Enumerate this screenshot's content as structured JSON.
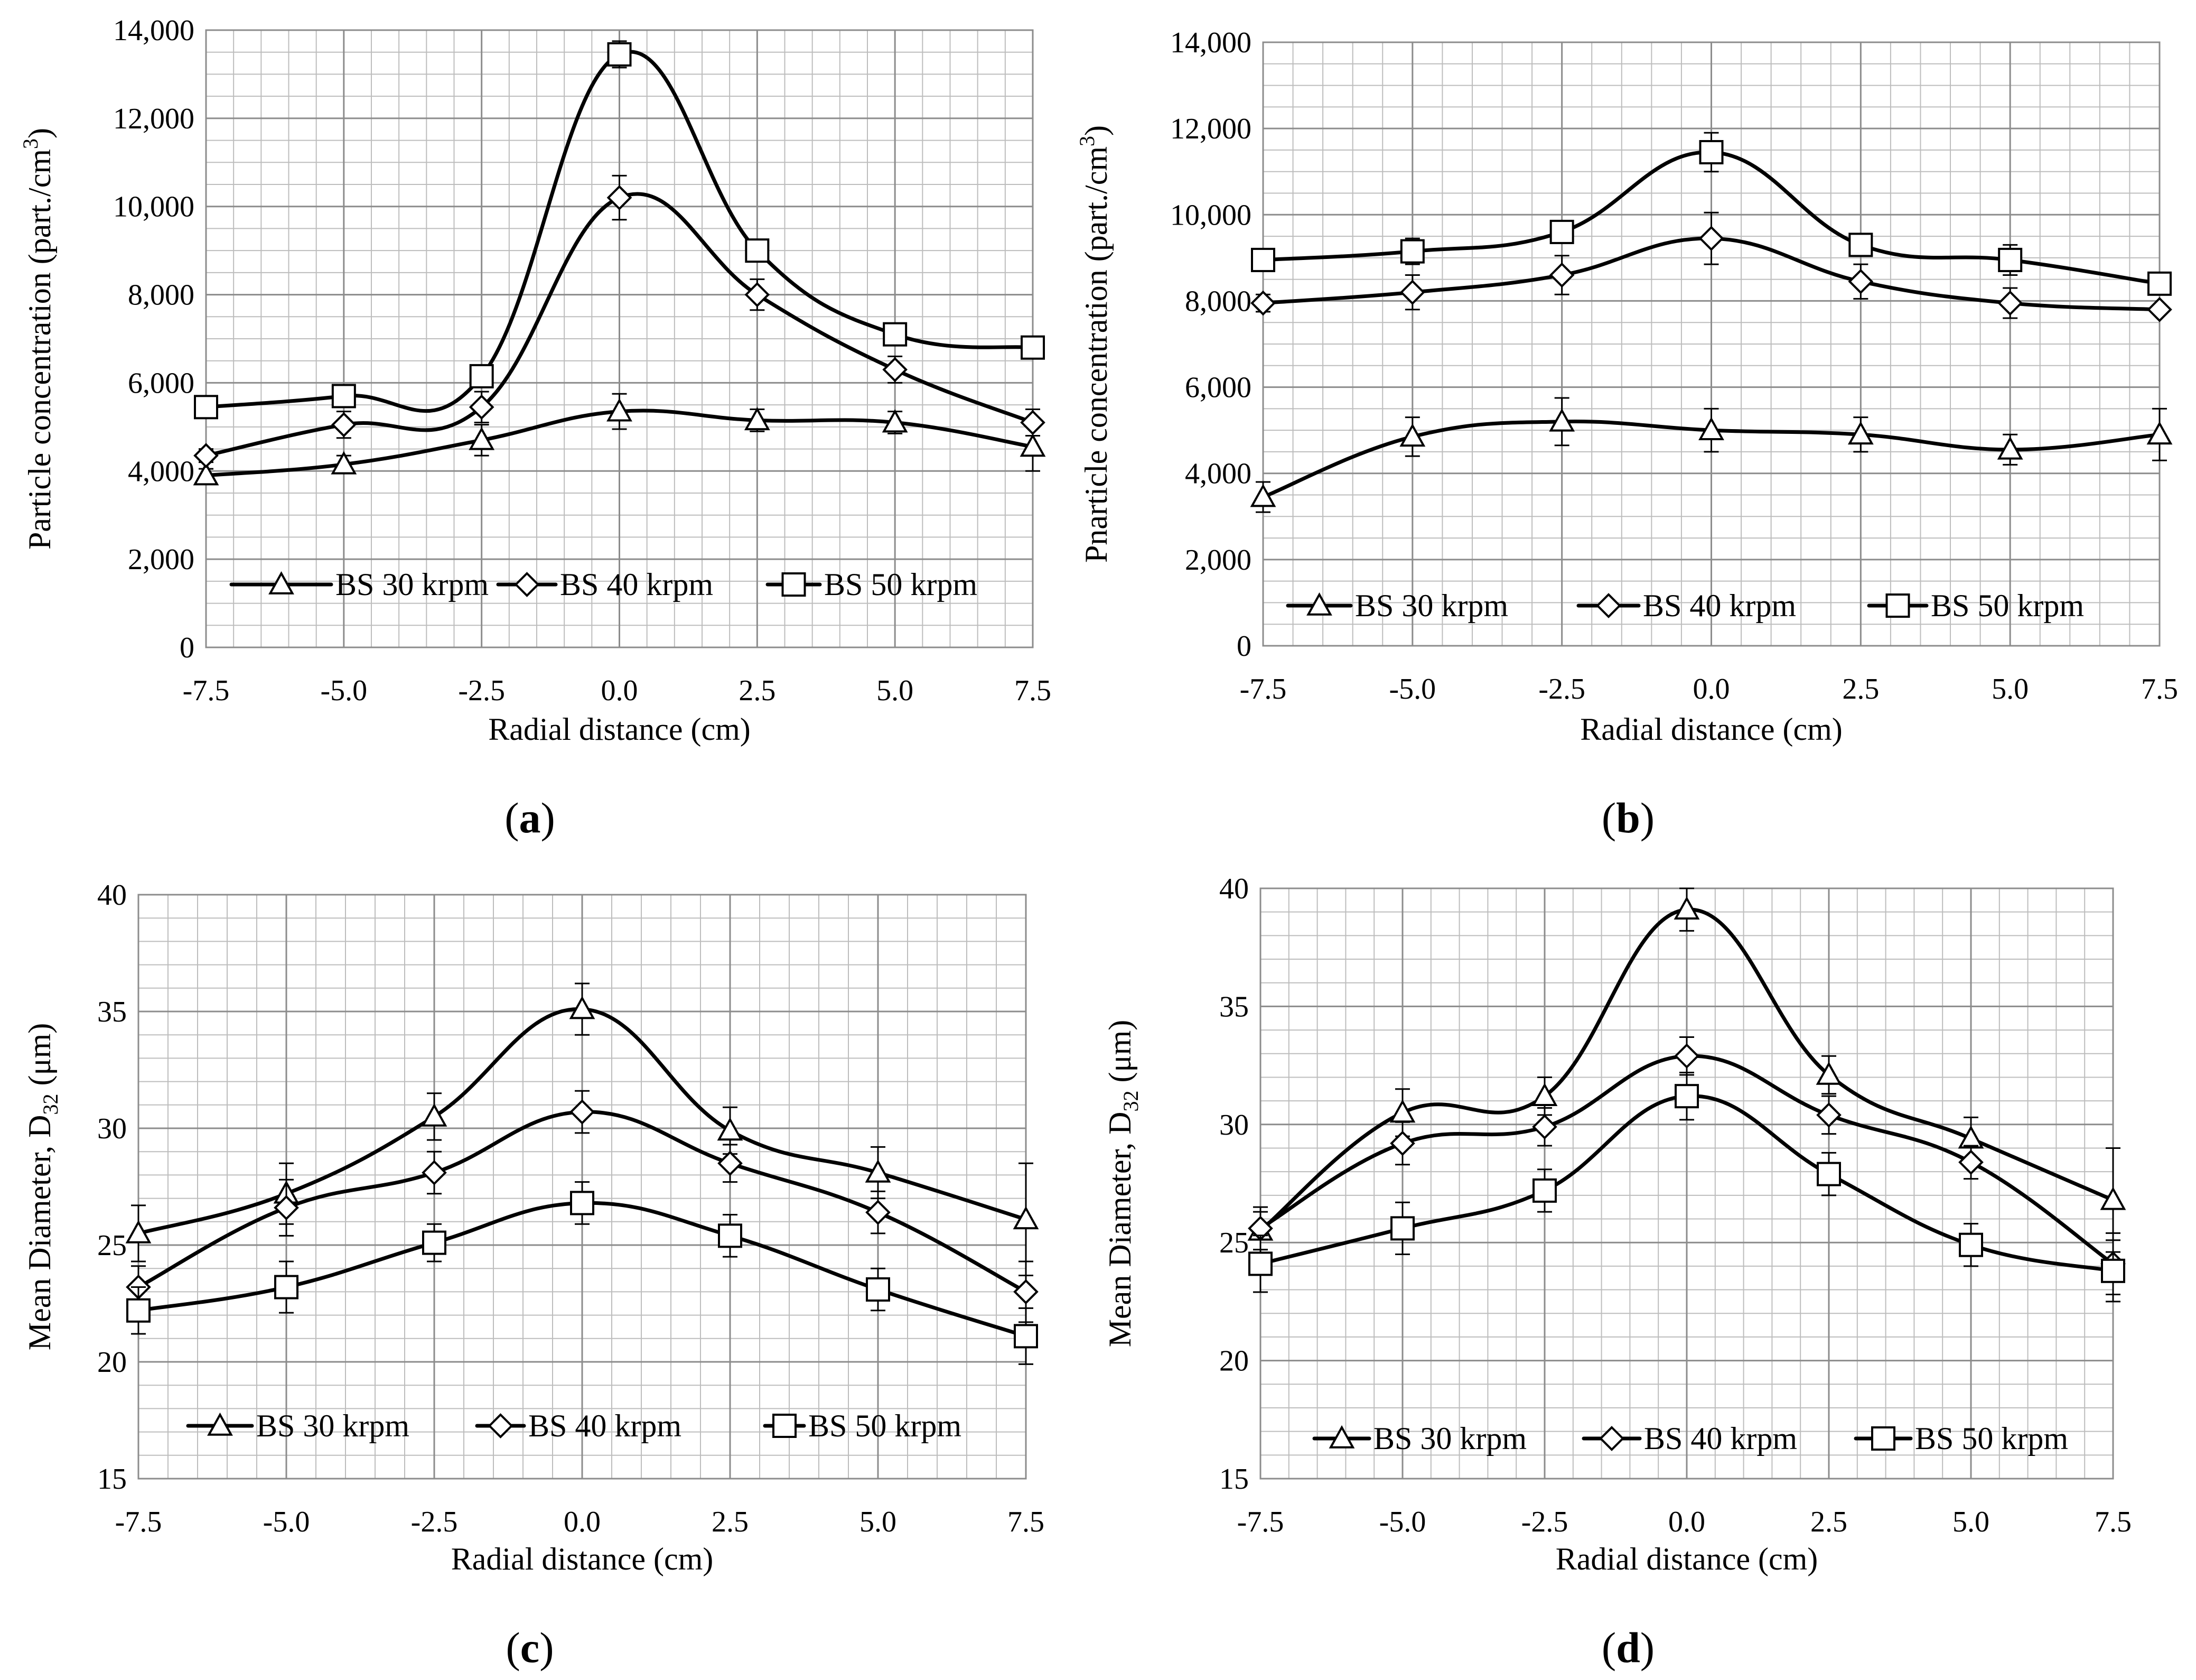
{
  "chart_data": [
    {
      "id": "a",
      "type": "line",
      "panel_label": "a",
      "xlabel": "Radial distance (cm)",
      "ylabel": "Particle concentration (part./cm",
      "ylabel_sup": "3",
      "ylabel_close": ")",
      "x": [
        -7.5,
        -5.0,
        -2.5,
        0.0,
        2.5,
        5.0,
        7.5
      ],
      "x_ticks": [
        "-7.5",
        "-5.0",
        "-2.5",
        "0.0",
        "2.5",
        "5.0",
        "7.5"
      ],
      "ylim": [
        0,
        14000
      ],
      "y_step": 2000,
      "y_minor_step": 500,
      "y_ticks": [
        "0",
        "2,000",
        "4,000",
        "6,000",
        "8,000",
        "10,000",
        "12,000",
        "14,000"
      ],
      "legend_position": "lower-left inside",
      "series": [
        {
          "name": "BS 30 krpm",
          "marker": "triangle",
          "values": [
            3900,
            4150,
            4700,
            5350,
            5150,
            5100,
            4550
          ],
          "err": [
            150,
            200,
            350,
            400,
            250,
            250,
            550
          ]
        },
        {
          "name": "BS 40 krpm",
          "marker": "diamond",
          "values": [
            4350,
            5050,
            5450,
            10200,
            8000,
            6300,
            5100
          ],
          "err": [
            150,
            300,
            350,
            500,
            350,
            300,
            300
          ]
        },
        {
          "name": "BS 50 krpm",
          "marker": "square",
          "values": [
            5450,
            5700,
            6150,
            13450,
            9000,
            7100,
            6800
          ],
          "err": [
            0,
            200,
            200,
            300,
            150,
            200,
            100
          ]
        }
      ]
    },
    {
      "id": "b",
      "type": "line",
      "panel_label": "b",
      "xlabel": "Radial distance (cm)",
      "ylabel": "Pnarticle concentration (part./cm",
      "ylabel_sup": "3",
      "ylabel_close": ")",
      "x": [
        -7.5,
        -5.0,
        -2.5,
        0.0,
        2.5,
        5.0,
        7.5
      ],
      "x_ticks": [
        "-7.5",
        "-5.0",
        "-2.5",
        "0.0",
        "2.5",
        "5.0",
        "7.5"
      ],
      "ylim": [
        0,
        14000
      ],
      "y_step": 2000,
      "y_minor_step": 500,
      "y_ticks": [
        "0",
        "2,000",
        "4,000",
        "6,000",
        "8,000",
        "10,000",
        "12,000",
        "14,000"
      ],
      "legend_position": "bottom inside",
      "series": [
        {
          "name": "BS 30 krpm",
          "marker": "triangle",
          "values": [
            3450,
            4850,
            5200,
            5000,
            4900,
            4550,
            4900
          ],
          "err": [
            350,
            450,
            550,
            500,
            400,
            350,
            600
          ]
        },
        {
          "name": "BS 40 krpm",
          "marker": "diamond",
          "values": [
            7950,
            8200,
            8600,
            9450,
            8450,
            7950,
            7800
          ],
          "err": [
            200,
            400,
            450,
            600,
            400,
            350,
            100
          ]
        },
        {
          "name": "BS 50 krpm",
          "marker": "square",
          "values": [
            8950,
            9150,
            9600,
            11450,
            9300,
            8950,
            8400
          ],
          "err": [
            200,
            300,
            200,
            450,
            250,
            350,
            100
          ]
        }
      ]
    },
    {
      "id": "c",
      "type": "line",
      "panel_label": "c",
      "xlabel": "Radial distance (cm)",
      "ylabel": "Mean Diameter, D",
      "ylabel_sub": "32",
      "ylabel_close": " (μm)",
      "x": [
        -7.5,
        -5.0,
        -2.5,
        0.0,
        2.5,
        5.0,
        7.5
      ],
      "x_ticks": [
        "-7.5",
        "-5.0",
        "-2.5",
        "0.0",
        "2.5",
        "5.0",
        "7.5"
      ],
      "ylim": [
        15,
        40
      ],
      "y_step": 5,
      "y_minor_step": 1,
      "y_ticks": [
        "15",
        "20",
        "25",
        "30",
        "35",
        "40"
      ],
      "legend_position": "bottom inside",
      "series": [
        {
          "name": "BS 30 krpm",
          "marker": "triangle",
          "values": [
            25.5,
            27.2,
            30.5,
            35.1,
            29.9,
            28.1,
            26.1
          ],
          "err": [
            1.2,
            1.3,
            1.0,
            1.1,
            1.0,
            1.1,
            2.4
          ]
        },
        {
          "name": "BS 40 krpm",
          "marker": "diamond",
          "values": [
            23.2,
            26.6,
            28.1,
            30.7,
            28.5,
            26.4,
            23.0
          ],
          "err": [
            0.9,
            1.2,
            0.9,
            0.9,
            0.8,
            0.9,
            1.3
          ]
        },
        {
          "name": "BS 50 krpm",
          "marker": "square",
          "values": [
            22.2,
            23.2,
            25.1,
            26.8,
            25.4,
            23.1,
            21.1
          ],
          "err": [
            1.0,
            1.1,
            0.8,
            0.9,
            0.9,
            0.9,
            1.2
          ]
        }
      ]
    },
    {
      "id": "d",
      "type": "line",
      "panel_label": "d",
      "xlabel": "Radial distance (cm)",
      "ylabel": "Mean Diameter, D",
      "ylabel_sub": "32",
      "ylabel_close": " (μm)",
      "x": [
        -7.5,
        -5.0,
        -2.5,
        0.0,
        2.5,
        5.0,
        7.5
      ],
      "x_ticks": [
        "-7.5",
        "-5.0",
        "-2.5",
        "0.0",
        "2.5",
        "5.0",
        "7.5"
      ],
      "ylim": [
        15,
        40
      ],
      "y_step": 5,
      "y_minor_step": 1,
      "y_ticks": [
        "15",
        "20",
        "25",
        "30",
        "35",
        "40"
      ],
      "legend_position": "bottom inside",
      "series": [
        {
          "name": "BS 30 krpm",
          "marker": "triangle",
          "values": [
            25.5,
            30.5,
            31.2,
            39.1,
            32.1,
            29.4,
            26.8
          ],
          "err": [
            0.8,
            1.0,
            0.8,
            0.9,
            0.8,
            0.9,
            2.2
          ]
        },
        {
          "name": "BS 40 krpm",
          "marker": "diamond",
          "values": [
            25.6,
            29.2,
            29.9,
            32.9,
            30.4,
            28.4,
            24.1
          ],
          "err": [
            0.9,
            0.9,
            0.8,
            0.8,
            0.8,
            0.7,
            1.3
          ]
        },
        {
          "name": "BS 50 krpm",
          "marker": "square",
          "values": [
            24.1,
            25.6,
            27.2,
            31.2,
            27.9,
            24.9,
            23.8
          ],
          "err": [
            1.2,
            1.1,
            0.9,
            1.0,
            0.9,
            0.9,
            1.3
          ]
        }
      ]
    }
  ]
}
